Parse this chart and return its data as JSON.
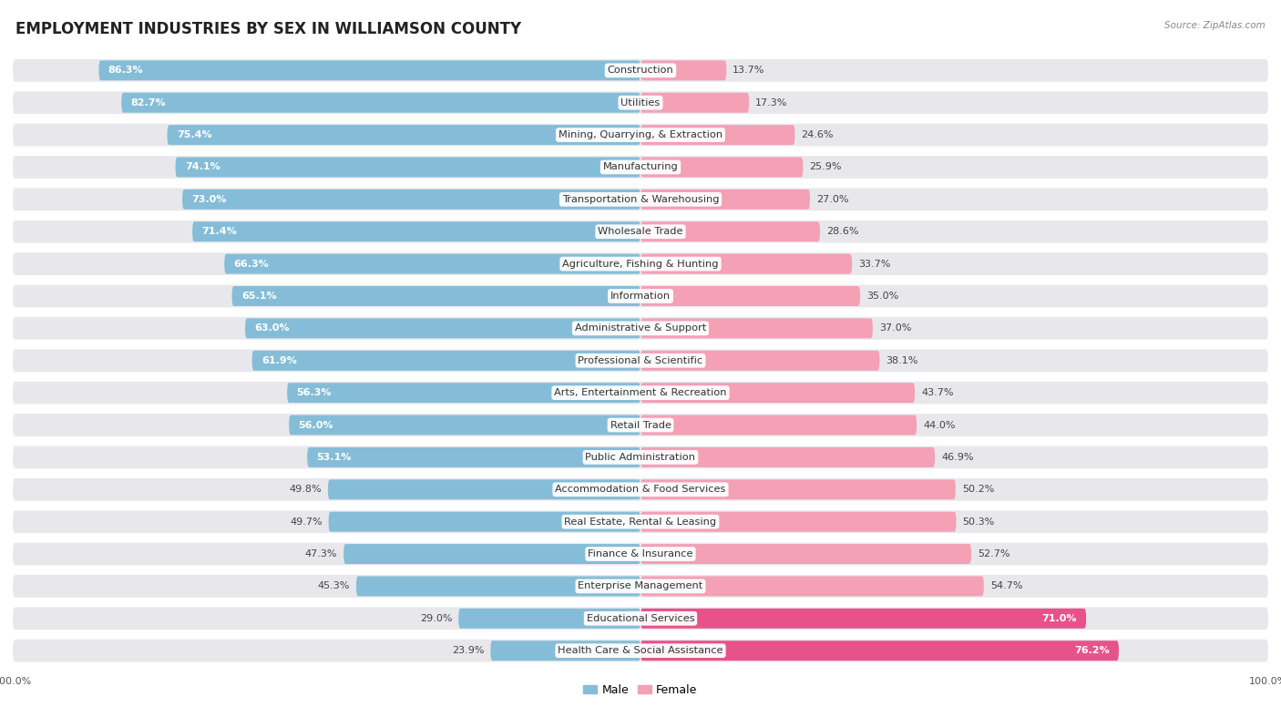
{
  "title": "EMPLOYMENT INDUSTRIES BY SEX IN WILLIAMSON COUNTY",
  "source": "Source: ZipAtlas.com",
  "categories": [
    "Construction",
    "Utilities",
    "Mining, Quarrying, & Extraction",
    "Manufacturing",
    "Transportation & Warehousing",
    "Wholesale Trade",
    "Agriculture, Fishing & Hunting",
    "Information",
    "Administrative & Support",
    "Professional & Scientific",
    "Arts, Entertainment & Recreation",
    "Retail Trade",
    "Public Administration",
    "Accommodation & Food Services",
    "Real Estate, Rental & Leasing",
    "Finance & Insurance",
    "Enterprise Management",
    "Educational Services",
    "Health Care & Social Assistance"
  ],
  "male": [
    86.3,
    82.7,
    75.4,
    74.1,
    73.0,
    71.4,
    66.3,
    65.1,
    63.0,
    61.9,
    56.3,
    56.0,
    53.1,
    49.8,
    49.7,
    47.3,
    45.3,
    29.0,
    23.9
  ],
  "female": [
    13.7,
    17.3,
    24.6,
    25.9,
    27.0,
    28.6,
    33.7,
    35.0,
    37.0,
    38.1,
    43.7,
    44.0,
    46.9,
    50.2,
    50.3,
    52.7,
    54.7,
    71.0,
    76.2
  ],
  "male_color": "#85bdd8",
  "female_color": "#f4a0b5",
  "female_highlight_color": "#e8528a",
  "bg_color": "#ffffff",
  "pill_color": "#e8e8ec",
  "title_fontsize": 12,
  "label_fontsize": 8.2,
  "value_fontsize": 8.0,
  "tick_fontsize": 8,
  "bar_height": 0.62,
  "highlight_threshold": 70.0
}
